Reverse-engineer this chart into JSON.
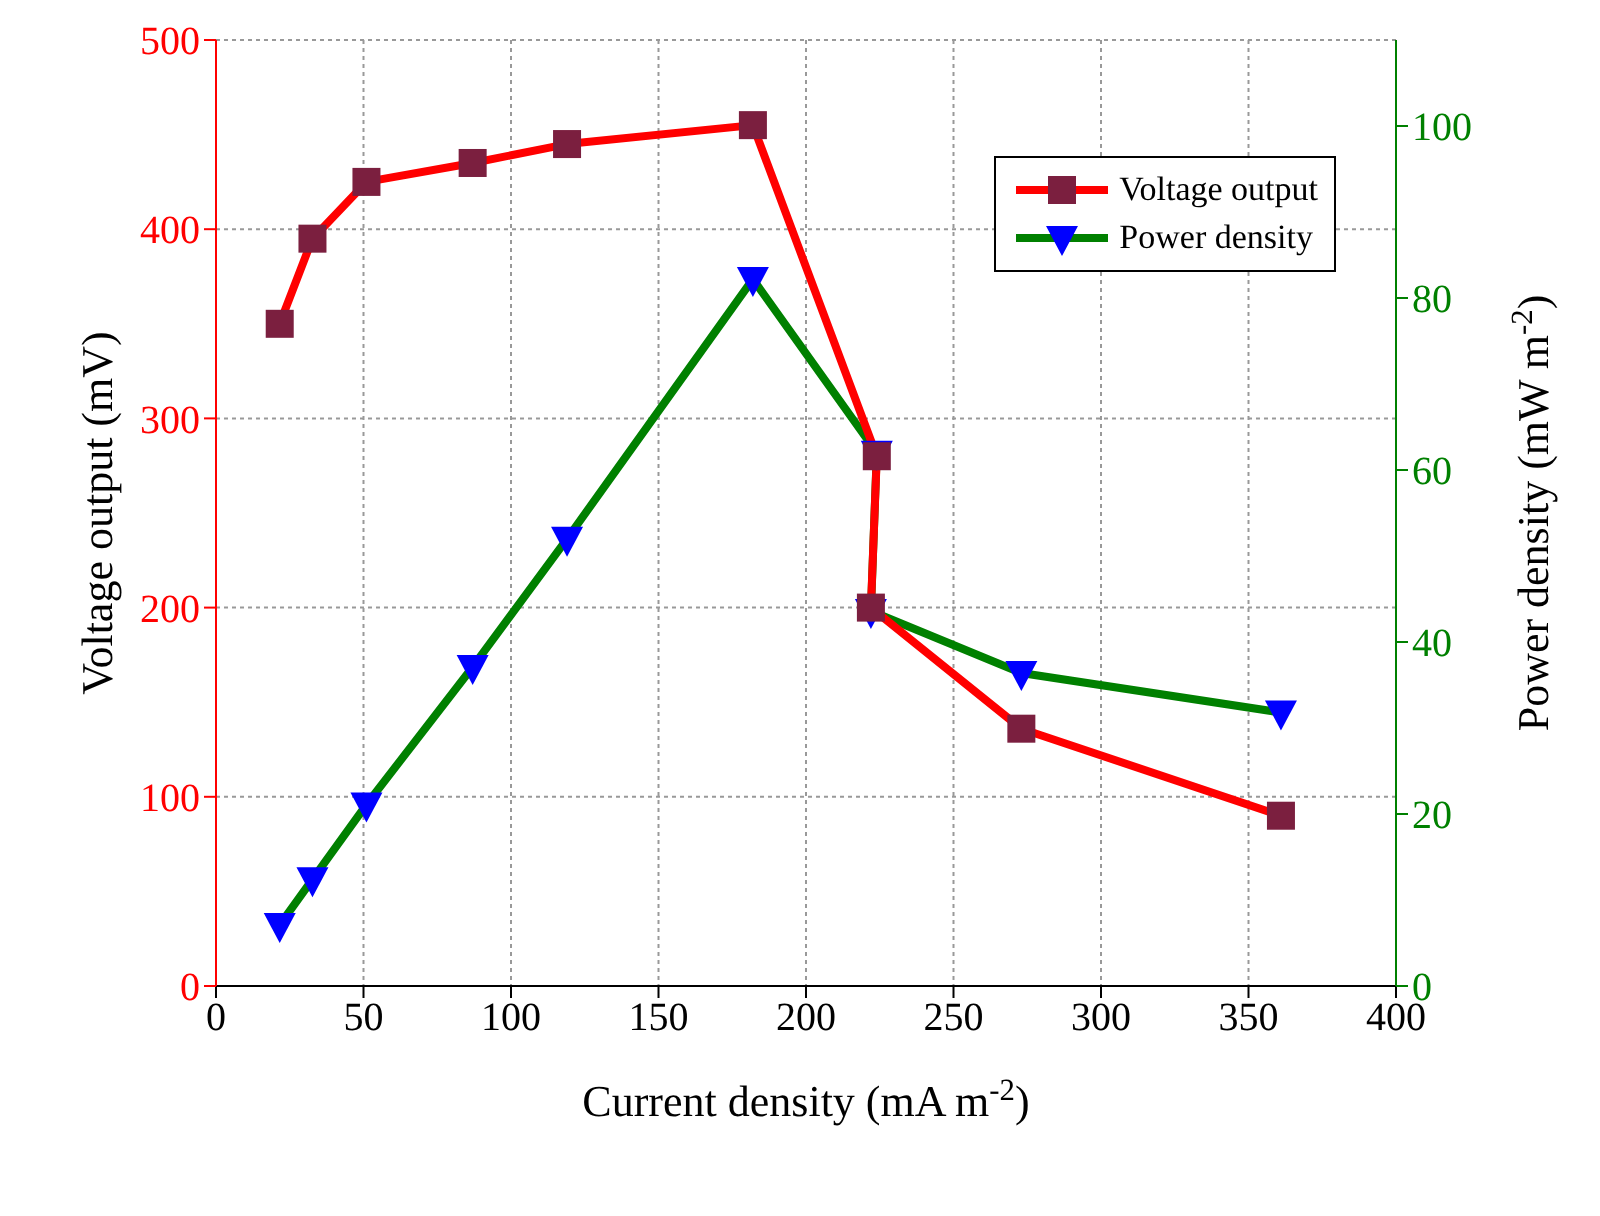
{
  "chart_data": {
    "type": "line",
    "xlabel": "Current density (mA m$^{-2}$)",
    "ylabel": "Voltage output (mV)",
    "y2label": "Power density (mW m$^{-2}$)",
    "xlim": [
      0,
      400
    ],
    "xticks": [
      0,
      50,
      100,
      150,
      200,
      250,
      300,
      350,
      400
    ],
    "ylim": [
      0,
      500
    ],
    "yticks": [
      0,
      100,
      200,
      300,
      400,
      500
    ],
    "y2lim": [
      0,
      110
    ],
    "y2ticks": [
      0,
      20,
      40,
      60,
      80,
      100
    ],
    "grid": true,
    "legend": "top right",
    "line_style": "solid",
    "series": [
      {
        "name": "Voltage output",
        "color": "#ff0000",
        "marker": "square",
        "colors": [
          "#7b1f3f",
          "#7b1f3f",
          "#7b1f3f",
          "#7b1f3f",
          "#7b1f3f",
          "#7b1f3f",
          "#7b1f3f",
          "#7b1f3f",
          "#7b1f3f",
          "#7b1f3f"
        ],
        "x": [
          21.6,
          32.7,
          51,
          87,
          119,
          182,
          224,
          222,
          273,
          361
        ],
        "values": [
          350,
          395,
          425,
          435,
          445,
          455,
          280,
          200,
          136,
          90
        ]
      },
      {
        "name": "Power density",
        "color": "#008000",
        "marker": "triangle",
        "axis": "y2",
        "colors": [
          "#0000ff",
          "#0000ff",
          "#0000ff",
          "#0000ff",
          "#0000ff",
          "#0000ff",
          "#0000ff",
          "#0000ff",
          "#0000ff",
          "#0000ff"
        ],
        "x": [
          21.6,
          32.7,
          51,
          87,
          119,
          182,
          224,
          222,
          273,
          361
        ],
        "values": [
          7.1,
          12.4,
          21.1,
          37.1,
          52,
          82.2,
          62,
          43.6,
          36.4,
          31.8
        ]
      }
    ]
  }
}
